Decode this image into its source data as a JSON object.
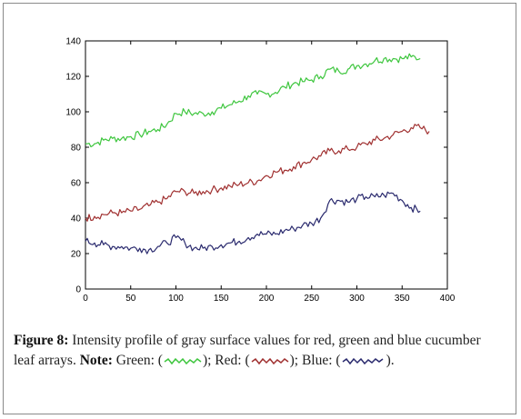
{
  "chart_data": {
    "type": "line",
    "xlim": [
      0,
      400
    ],
    "ylim": [
      0,
      140
    ],
    "xticks": [
      "0",
      "50",
      "100",
      "150",
      "200",
      "250",
      "300",
      "350",
      "400"
    ],
    "yticks": [
      "0",
      "20",
      "40",
      "60",
      "80",
      "100",
      "120",
      "140"
    ],
    "grid": false,
    "series": [
      {
        "key": "green",
        "color": "#3ec63e",
        "x": [
          0,
          10,
          20,
          30,
          40,
          50,
          60,
          70,
          80,
          90,
          100,
          110,
          120,
          130,
          140,
          150,
          160,
          170,
          180,
          190,
          200,
          210,
          220,
          230,
          240,
          250,
          260,
          270,
          280,
          290,
          300,
          310,
          320,
          330,
          340,
          350,
          360,
          370
        ],
        "y": [
          82,
          82,
          84,
          85,
          85,
          86,
          87,
          89,
          90,
          93,
          99,
          100,
          99,
          99,
          100,
          102,
          104,
          106,
          109,
          110,
          110,
          111,
          114,
          116,
          117,
          118,
          120,
          124,
          123,
          124,
          126,
          127,
          129,
          130,
          130,
          130,
          131,
          130
        ]
      },
      {
        "key": "red",
        "color": "#a03030",
        "x": [
          0,
          10,
          20,
          30,
          40,
          50,
          60,
          70,
          80,
          90,
          100,
          110,
          120,
          130,
          140,
          150,
          160,
          170,
          180,
          190,
          200,
          210,
          220,
          230,
          240,
          250,
          260,
          270,
          280,
          290,
          300,
          310,
          320,
          330,
          340,
          350,
          360,
          370,
          380
        ],
        "y": [
          40,
          41,
          42,
          43,
          43,
          44,
          45,
          47,
          49,
          51,
          55,
          55,
          54,
          55,
          56,
          57,
          58,
          59,
          60,
          61,
          64,
          66,
          67,
          69,
          71,
          73,
          75,
          78,
          78,
          79,
          80,
          82,
          84,
          85,
          87,
          89,
          91,
          91,
          89
        ]
      },
      {
        "key": "blue",
        "color": "#2a2a6e",
        "x": [
          0,
          10,
          20,
          30,
          40,
          50,
          60,
          70,
          80,
          90,
          100,
          110,
          120,
          130,
          140,
          150,
          160,
          170,
          180,
          190,
          200,
          210,
          220,
          230,
          240,
          250,
          260,
          270,
          280,
          290,
          300,
          310,
          320,
          330,
          340,
          350,
          360,
          370
        ],
        "y": [
          27,
          26,
          25,
          24,
          24,
          23,
          23,
          22,
          24,
          26,
          29,
          26,
          23,
          23,
          24,
          25,
          26,
          27,
          29,
          31,
          31,
          31,
          33,
          34,
          36,
          37,
          40,
          50,
          50,
          49,
          51,
          52,
          52,
          53,
          54,
          50,
          46,
          44
        ]
      }
    ]
  },
  "caption": {
    "label": "Figure 8:",
    "text": " Intensity profile of gray surface values for red, green and blue cucumber leaf arrays. ",
    "note_label": "Note:",
    "green_text": " Green: (",
    "green_close": "); Red: (",
    "red_close": "); Blue: (",
    "blue_close": ")."
  }
}
